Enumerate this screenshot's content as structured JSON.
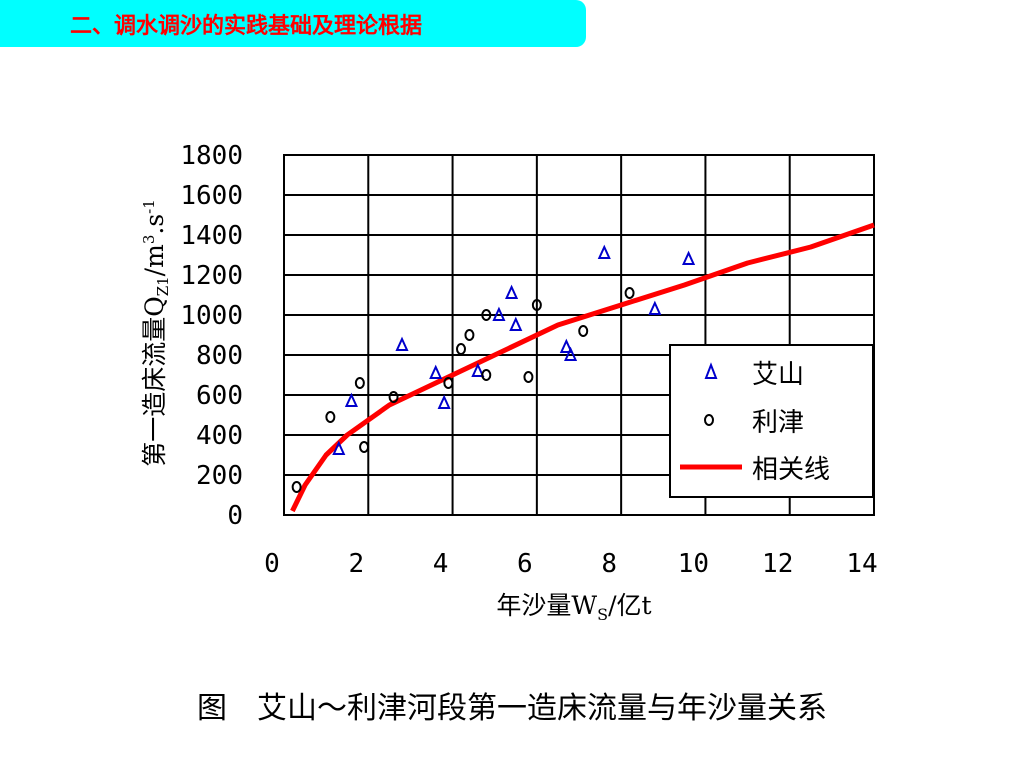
{
  "header": {
    "title": "二、调水调沙的实践基础及理论根据"
  },
  "caption": "图　艾山～利津河段第一造床流量与年沙量关系",
  "chart_data": {
    "type": "scatter",
    "xlabel": {
      "prefix": "年沙量W",
      "sub": "S",
      "suffix": "/亿t"
    },
    "ylabel": {
      "prefix": "第一造床流量Q",
      "sub": "Z1",
      "unit": "/m",
      "sup1": "3",
      "mid": ".s",
      "sup2": "-1"
    },
    "xlim": [
      0,
      14
    ],
    "ylim": [
      0,
      1800
    ],
    "x_ticks": [
      "0",
      "2",
      "4",
      "6",
      "8",
      "10",
      "12",
      "14"
    ],
    "y_ticks": [
      "0",
      "200",
      "400",
      "600",
      "800",
      "1000",
      "1200",
      "1400",
      "1600",
      "1800"
    ],
    "grid": true,
    "legend_position": "lower-right",
    "colors": {
      "aishan": "#0000cc",
      "lijin": "#000000",
      "fit": "#ff0000",
      "header_bg": "#00ffff",
      "header_text": "#ff0000"
    },
    "series": [
      {
        "name": "艾山",
        "kind": "scatter",
        "marker": "triangle-icon",
        "points": [
          [
            1.3,
            330
          ],
          [
            1.6,
            570
          ],
          [
            2.8,
            850
          ],
          [
            3.6,
            710
          ],
          [
            3.8,
            560
          ],
          [
            4.6,
            720
          ],
          [
            5.1,
            1000
          ],
          [
            5.4,
            1110
          ],
          [
            5.5,
            950
          ],
          [
            6.7,
            840
          ],
          [
            6.8,
            800
          ],
          [
            7.6,
            1310
          ],
          [
            8.8,
            1030
          ],
          [
            9.6,
            1280
          ]
        ]
      },
      {
        "name": "利津",
        "kind": "scatter",
        "marker": "circle-icon",
        "points": [
          [
            0.3,
            140
          ],
          [
            1.1,
            490
          ],
          [
            1.8,
            660
          ],
          [
            1.9,
            340
          ],
          [
            2.6,
            590
          ],
          [
            3.9,
            660
          ],
          [
            4.2,
            830
          ],
          [
            4.4,
            900
          ],
          [
            4.8,
            700
          ],
          [
            4.8,
            1000
          ],
          [
            5.8,
            690
          ],
          [
            6.0,
            1050
          ],
          [
            7.1,
            920
          ],
          [
            8.2,
            1110
          ]
        ]
      },
      {
        "name": "相关线",
        "kind": "line",
        "points": [
          [
            0.2,
            20
          ],
          [
            0.5,
            150
          ],
          [
            1.0,
            300
          ],
          [
            1.5,
            400
          ],
          [
            2.5,
            550
          ],
          [
            3.5,
            650
          ],
          [
            5.0,
            800
          ],
          [
            6.5,
            950
          ],
          [
            8.0,
            1050
          ],
          [
            9.5,
            1150
          ],
          [
            11.0,
            1260
          ],
          [
            12.5,
            1340
          ],
          [
            14.0,
            1450
          ]
        ]
      }
    ]
  }
}
